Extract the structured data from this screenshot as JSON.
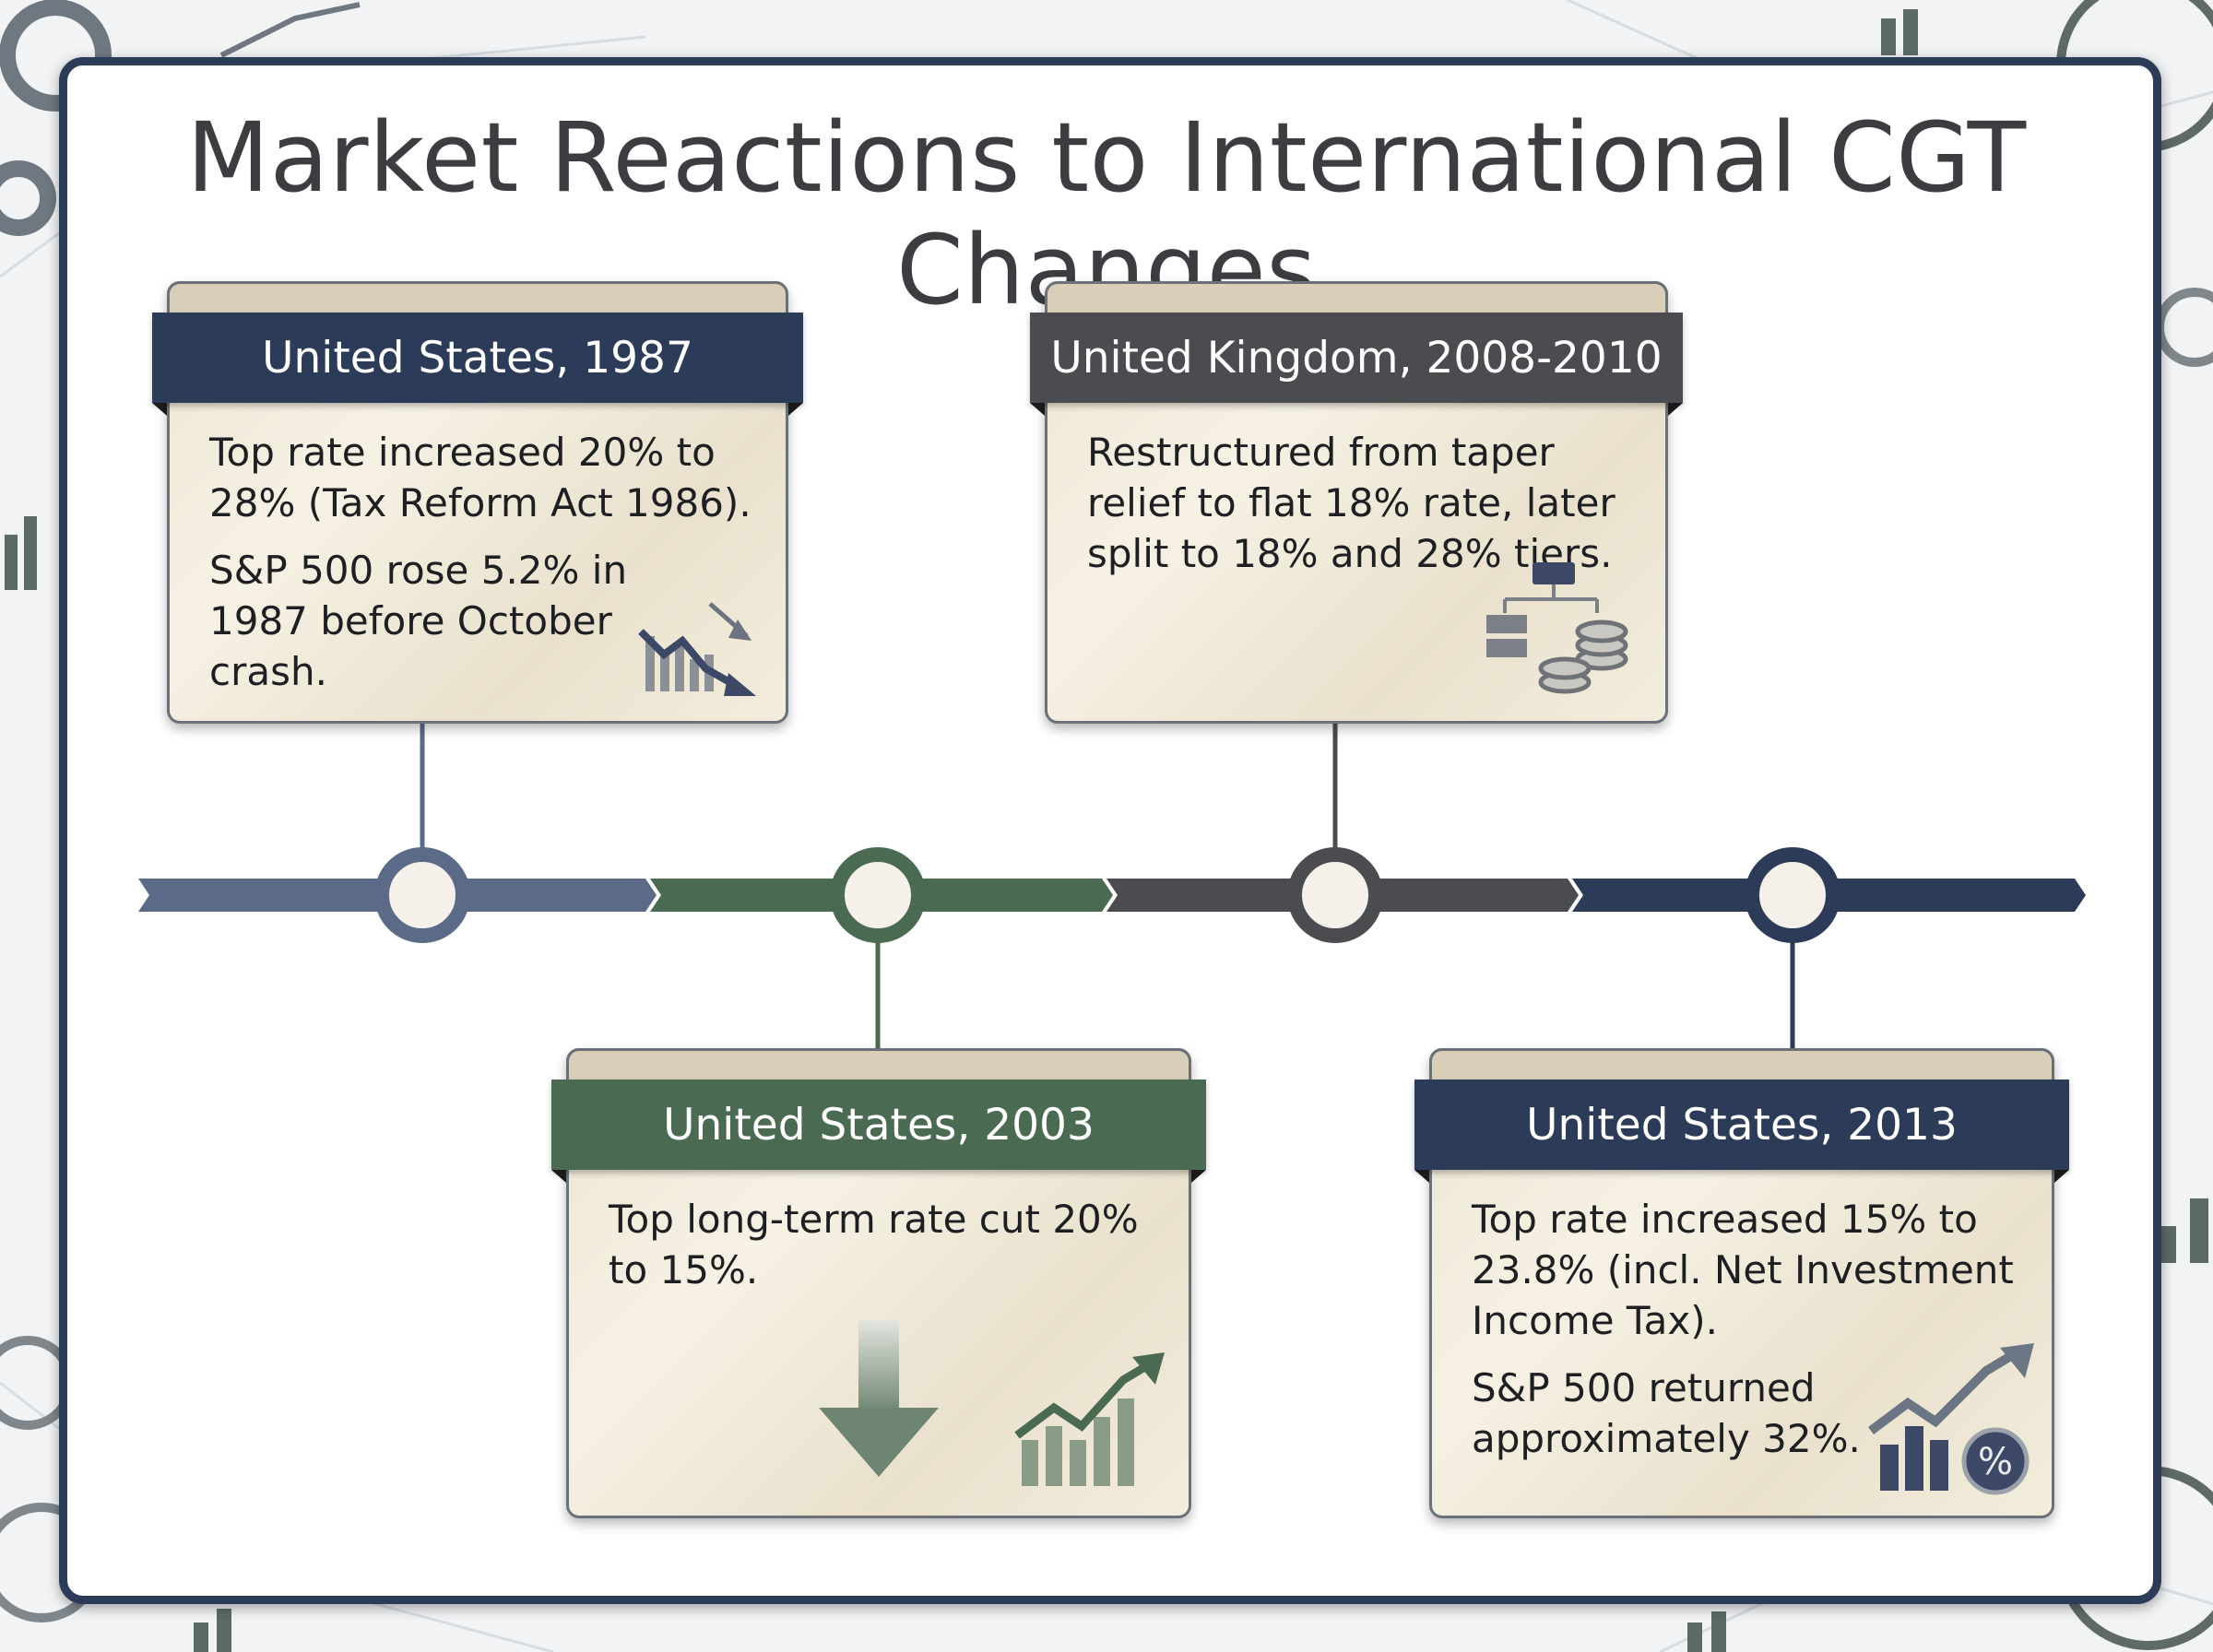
{
  "title": "Market Reactions to International CGT Changes",
  "colors": {
    "navy": "#2c3b57",
    "green": "#4a6b52",
    "charcoal": "#4b4c50",
    "slate": "#5b6a86",
    "frame": "#2c3b57"
  },
  "events": [
    {
      "header": "United States, 1987",
      "color": "#2c3b57",
      "line1": "Top rate increased 20% to 28% (Tax Reform Act 1986).",
      "line2": "S&P 500 rose 5.2% in 1987 before October crash.",
      "icon": "declining-bar-chart-icon"
    },
    {
      "header": "United States, 2003",
      "color": "#4a6b52",
      "line1": "Top long-term rate cut 20% to 15%.",
      "line2": "",
      "icon": "down-arrow-and-rising-chart-icon"
    },
    {
      "header": "United Kingdom, 2008-2010",
      "color": "#4b4c50",
      "line1": "Restructured from taper relief to flat 18% rate, later split to 18% and 28% tiers.",
      "line2": "",
      "icon": "org-chart-coins-icon"
    },
    {
      "header": "United States, 2013",
      "color": "#2c3b57",
      "line1": "Top rate increased 15% to 23.8% (incl. Net Investment Income Tax).",
      "line2": "S&P 500 returned approximately 32%.",
      "icon": "rising-chart-percent-icon"
    }
  ]
}
